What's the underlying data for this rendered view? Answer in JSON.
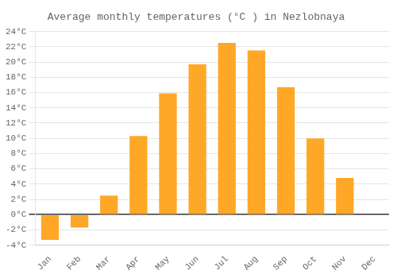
{
  "chart_data": {
    "type": "bar",
    "title": "Average monthly temperatures (°C ) in Nezlobnaya",
    "categories": [
      "Jan",
      "Feb",
      "Mar",
      "Apr",
      "May",
      "Jun",
      "Jul",
      "Aug",
      "Sep",
      "Oct",
      "Nov",
      "Dec"
    ],
    "values": [
      -3.3,
      -1.7,
      2.5,
      10.3,
      15.9,
      19.7,
      22.5,
      21.5,
      16.7,
      10.0,
      4.8,
      0.0
    ],
    "color": "#FFA726",
    "ylim": [
      -4,
      24
    ],
    "yticks": [
      {
        "value": -4,
        "label": "-4°C"
      },
      {
        "value": -2,
        "label": "-2°C"
      },
      {
        "value": 0,
        "label": "0°C"
      },
      {
        "value": 2,
        "label": "2°C"
      },
      {
        "value": 4,
        "label": "4°C"
      },
      {
        "value": 6,
        "label": "6°C"
      },
      {
        "value": 8,
        "label": "8°C"
      },
      {
        "value": 10,
        "label": "10°C"
      },
      {
        "value": 12,
        "label": "12°C"
      },
      {
        "value": 14,
        "label": "14°C"
      },
      {
        "value": 16,
        "label": "16°C"
      },
      {
        "value": 18,
        "label": "18°C"
      },
      {
        "value": 20,
        "label": "20°C"
      },
      {
        "value": 22,
        "label": "22°C"
      },
      {
        "value": 24,
        "label": "24°C"
      }
    ],
    "grid": true
  }
}
